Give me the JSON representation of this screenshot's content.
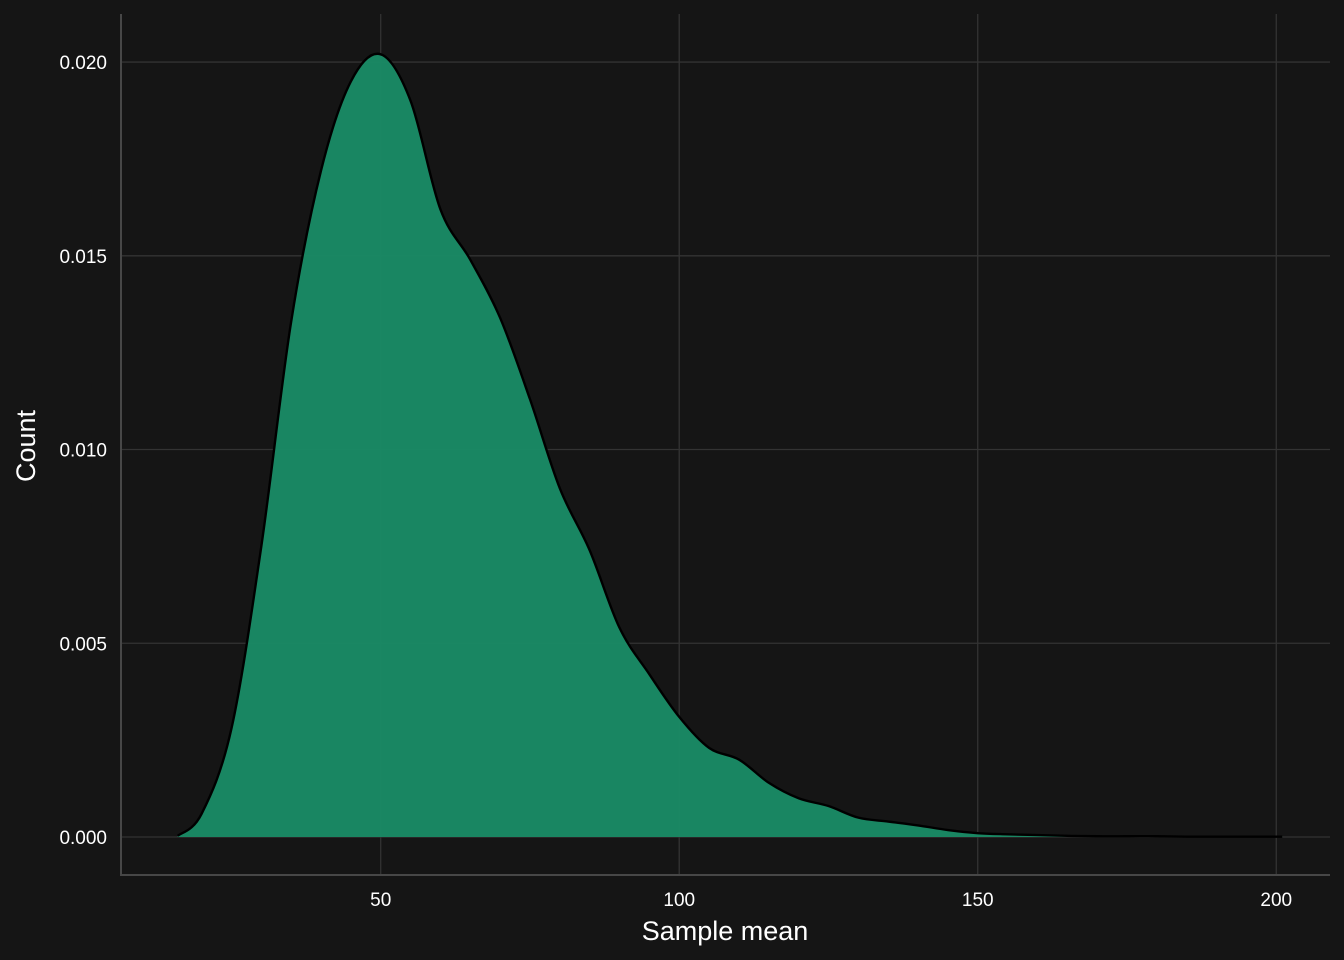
{
  "colors": {
    "background": "#151515",
    "grid": "#333333",
    "axis_line": "#474747",
    "density_fill": "#1a8a65",
    "density_outline": "#000000",
    "text": "#ffffff"
  },
  "chart_data": {
    "type": "area",
    "title": "",
    "xlabel": "Sample mean",
    "ylabel": "Count",
    "xlim": [
      6.5,
      209
    ],
    "ylim": [
      -0.00098,
      0.02124
    ],
    "x_ticks": [
      50,
      100,
      150,
      200
    ],
    "x_tick_labels": [
      "50",
      "100",
      "150",
      "200"
    ],
    "y_ticks": [
      0.0,
      0.005,
      0.01,
      0.015,
      0.02
    ],
    "y_tick_labels": [
      "0.000",
      "0.005",
      "0.010",
      "0.015",
      "0.020"
    ],
    "grid": true,
    "legend": "none",
    "series": [
      {
        "x": [
          16,
          20,
          25,
          30,
          35,
          40,
          45,
          50,
          55,
          60,
          65,
          70,
          75,
          80,
          85,
          90,
          95,
          100,
          105,
          110,
          115,
          120,
          125,
          130,
          135,
          140,
          145,
          150,
          155,
          160,
          165,
          170,
          175,
          180,
          185,
          190,
          195,
          201
        ],
        "y": [
          3e-05,
          0.0006,
          0.0028,
          0.0075,
          0.0133,
          0.0172,
          0.0195,
          0.0202,
          0.019,
          0.0162,
          0.0149,
          0.0134,
          0.0113,
          0.009,
          0.0074,
          0.0054,
          0.0042,
          0.0031,
          0.0023,
          0.002,
          0.0014,
          0.001,
          0.0008,
          0.0005,
          0.0004,
          0.0003,
          0.00018,
          0.0001,
          7e-05,
          5e-05,
          3e-05,
          2e-05,
          2e-05,
          2e-05,
          1e-05,
          1e-05,
          1e-05,
          1e-05
        ]
      }
    ]
  }
}
